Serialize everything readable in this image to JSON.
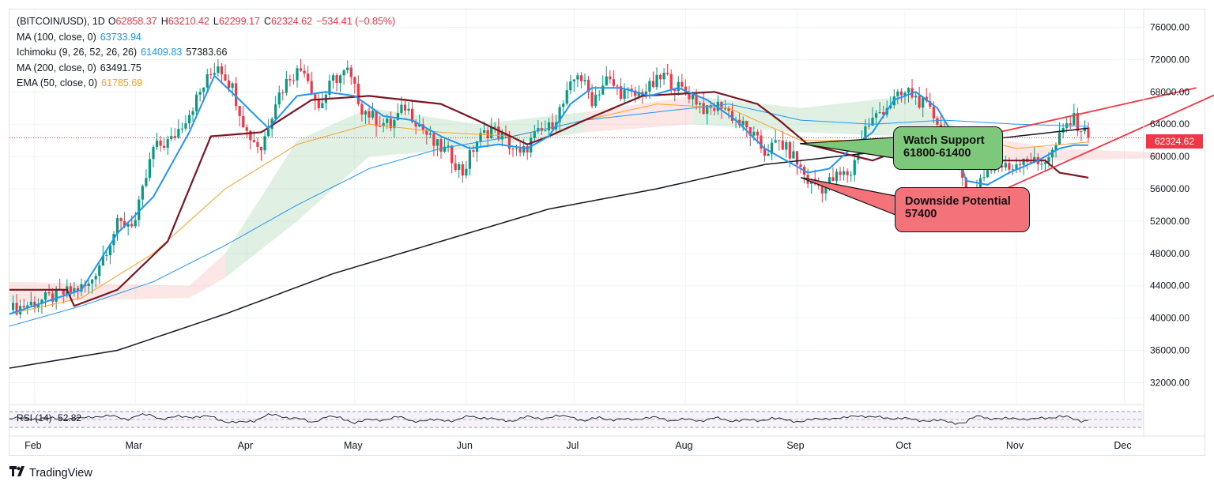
{
  "legend": {
    "symbol": "(BITCOIN/USD), 1D",
    "open_label": "O",
    "open": "62858.37",
    "high_label": "H",
    "high": "63210.42",
    "low_label": "L",
    "low": "62299.17",
    "close_label": "C",
    "close": "62324.62",
    "change": "−534.41 (−0.85%)",
    "ma100_label": "MA (100, close, 0)",
    "ma100_value": "63733.94",
    "ichimoku_label": "Ichimoku (9, 26, 52, 26, 26)",
    "ichimoku_value1": "61409.83",
    "ichimoku_value2": "57383.66",
    "ma200_label": "MA (200, close, 0)",
    "ma200_value": "63491.75",
    "ema50_label": "EMA (50, close, 0)",
    "ema50_value": "61785.69"
  },
  "price_tag": "62324.62",
  "callouts": {
    "support_line1": "Watch Support",
    "support_line2": "61800-61400",
    "downside_line1": "Downside Potential",
    "downside_line2": "57400"
  },
  "rsi": {
    "label": "RSI (14)",
    "value": "52.82"
  },
  "footer": {
    "brand": "TradingView",
    "logo_icon": "tradingview-logo-icon"
  },
  "colors": {
    "up": "#089981",
    "down": "#f23645",
    "ma100": "#2196f3",
    "ema50": "#f7a22a",
    "ma200": "#131722",
    "kijun": "#7b1622",
    "tenkan": "#2196f3",
    "cloud_bull": "#8fce9a",
    "cloud_bear": "#f6a7a7",
    "wedge": "#f23645"
  },
  "chart_data": {
    "type": "candlestick",
    "title": "(BITCOIN/USD), 1D",
    "x_axis_labels": [
      "Feb",
      "Mar",
      "Apr",
      "May",
      "Jun",
      "Jul",
      "Aug",
      "Sep",
      "Oct",
      "Nov",
      "Dec"
    ],
    "y_axis_labels": [
      "76000.00",
      "72000.00",
      "68000.00",
      "64000.00",
      "60000.00",
      "56000.00",
      "52000.00",
      "48000.00",
      "44000.00",
      "40000.00",
      "36000.00",
      "32000.00"
    ],
    "ylim": [
      29500,
      78200
    ],
    "days_from_jan25_range": [
      0,
      318
    ],
    "current_price": 62324.62,
    "close_anchors": [
      [
        0,
        41000
      ],
      [
        12,
        42600
      ],
      [
        22,
        44000
      ],
      [
        30,
        51500
      ],
      [
        35,
        52000
      ],
      [
        40,
        61000
      ],
      [
        45,
        62000
      ],
      [
        50,
        65500
      ],
      [
        55,
        69500
      ],
      [
        58,
        71500
      ],
      [
        62,
        68500
      ],
      [
        66,
        63000
      ],
      [
        70,
        61000
      ],
      [
        74,
        67000
      ],
      [
        78,
        70000
      ],
      [
        82,
        71000
      ],
      [
        86,
        66000
      ],
      [
        90,
        69500
      ],
      [
        94,
        70500
      ],
      [
        98,
        66000
      ],
      [
        102,
        64500
      ],
      [
        106,
        63800
      ],
      [
        110,
        66200
      ],
      [
        114,
        64000
      ],
      [
        118,
        61500
      ],
      [
        122,
        60500
      ],
      [
        126,
        58000
      ],
      [
        130,
        62000
      ],
      [
        134,
        63500
      ],
      [
        138,
        62000
      ],
      [
        142,
        60000
      ],
      [
        146,
        62500
      ],
      [
        150,
        63500
      ],
      [
        154,
        66500
      ],
      [
        158,
        70500
      ],
      [
        162,
        67000
      ],
      [
        166,
        69500
      ],
      [
        170,
        68000
      ],
      [
        174,
        67500
      ],
      [
        178,
        68500
      ],
      [
        182,
        70000
      ],
      [
        186,
        68500
      ],
      [
        190,
        67500
      ],
      [
        194,
        65500
      ],
      [
        198,
        66500
      ],
      [
        202,
        64500
      ],
      [
        206,
        63000
      ],
      [
        210,
        60500
      ],
      [
        214,
        61800
      ],
      [
        218,
        60000
      ],
      [
        222,
        57000
      ],
      [
        226,
        56200
      ],
      [
        230,
        57500
      ],
      [
        234,
        58000
      ],
      [
        238,
        63500
      ],
      [
        242,
        65500
      ],
      [
        246,
        67000
      ],
      [
        250,
        68000
      ],
      [
        254,
        66500
      ],
      [
        258,
        64500
      ],
      [
        262,
        61500
      ],
      [
        266,
        56000
      ],
      [
        268,
        54000
      ],
      [
        270,
        57500
      ],
      [
        274,
        59000
      ],
      [
        278,
        58500
      ],
      [
        282,
        60000
      ],
      [
        286,
        59000
      ],
      [
        290,
        60500
      ],
      [
        294,
        64000
      ],
      [
        296,
        64500
      ],
      [
        298,
        63500
      ],
      [
        300,
        62324
      ]
    ],
    "sma200": [
      [
        0,
        33800
      ],
      [
        30,
        36000
      ],
      [
        60,
        40500
      ],
      [
        90,
        45500
      ],
      [
        120,
        49500
      ],
      [
        150,
        53500
      ],
      [
        180,
        56000
      ],
      [
        210,
        59000
      ],
      [
        240,
        60500
      ],
      [
        270,
        62000
      ],
      [
        300,
        63500
      ]
    ],
    "sma100": [
      [
        0,
        39000
      ],
      [
        20,
        41500
      ],
      [
        40,
        44500
      ],
      [
        60,
        49000
      ],
      [
        80,
        54000
      ],
      [
        100,
        58500
      ],
      [
        120,
        61000
      ],
      [
        140,
        62500
      ],
      [
        160,
        64500
      ],
      [
        180,
        65500
      ],
      [
        200,
        66500
      ],
      [
        220,
        64500
      ],
      [
        240,
        64000
      ],
      [
        260,
        64500
      ],
      [
        280,
        64000
      ],
      [
        300,
        63734
      ]
    ],
    "ema50": [
      [
        0,
        40500
      ],
      [
        20,
        42500
      ],
      [
        40,
        48000
      ],
      [
        60,
        56000
      ],
      [
        80,
        61500
      ],
      [
        100,
        64000
      ],
      [
        120,
        63000
      ],
      [
        140,
        62500
      ],
      [
        160,
        64500
      ],
      [
        180,
        66500
      ],
      [
        200,
        66000
      ],
      [
        220,
        62000
      ],
      [
        240,
        62000
      ],
      [
        260,
        63000
      ],
      [
        280,
        61000
      ],
      [
        300,
        61786
      ]
    ],
    "tenkan": [
      [
        0,
        40500
      ],
      [
        10,
        42000
      ],
      [
        20,
        43500
      ],
      [
        30,
        50500
      ],
      [
        40,
        55000
      ],
      [
        50,
        63000
      ],
      [
        57,
        70000
      ],
      [
        64,
        67000
      ],
      [
        72,
        63500
      ],
      [
        80,
        67500
      ],
      [
        88,
        68000
      ],
      [
        96,
        67500
      ],
      [
        104,
        65000
      ],
      [
        112,
        64500
      ],
      [
        120,
        62500
      ],
      [
        128,
        61000
      ],
      [
        136,
        61500
      ],
      [
        144,
        61000
      ],
      [
        150,
        62500
      ],
      [
        156,
        66500
      ],
      [
        162,
        68500
      ],
      [
        170,
        68500
      ],
      [
        178,
        67500
      ],
      [
        186,
        68500
      ],
      [
        194,
        67000
      ],
      [
        202,
        64500
      ],
      [
        210,
        61000
      ],
      [
        216,
        59500
      ],
      [
        222,
        58000
      ],
      [
        228,
        58500
      ],
      [
        234,
        61000
      ],
      [
        240,
        63000
      ],
      [
        246,
        67000
      ],
      [
        252,
        68000
      ],
      [
        258,
        66000
      ],
      [
        262,
        63000
      ],
      [
        266,
        57000
      ],
      [
        272,
        56500
      ],
      [
        278,
        58000
      ],
      [
        286,
        59500
      ],
      [
        292,
        61000
      ],
      [
        296,
        61400
      ],
      [
        300,
        61410
      ]
    ],
    "kijun": [
      [
        0,
        43500
      ],
      [
        16,
        43500
      ],
      [
        18,
        41500
      ],
      [
        30,
        43500
      ],
      [
        44,
        49500
      ],
      [
        56,
        62500
      ],
      [
        70,
        63000
      ],
      [
        84,
        67000
      ],
      [
        100,
        67500
      ],
      [
        120,
        66500
      ],
      [
        130,
        64500
      ],
      [
        144,
        61500
      ],
      [
        150,
        62500
      ],
      [
        160,
        64500
      ],
      [
        176,
        67500
      ],
      [
        196,
        68000
      ],
      [
        208,
        66500
      ],
      [
        214,
        64500
      ],
      [
        222,
        61500
      ],
      [
        240,
        59500
      ],
      [
        252,
        61500
      ],
      [
        264,
        62000
      ],
      [
        268,
        59500
      ],
      [
        288,
        59500
      ],
      [
        292,
        58000
      ],
      [
        300,
        57384
      ]
    ],
    "cloud": [
      [
        0,
        42000,
        44500,
        "bear"
      ],
      [
        50,
        42500,
        44000,
        "bear"
      ],
      [
        60,
        45000,
        48000,
        "bull"
      ],
      [
        80,
        52000,
        62000,
        "bull"
      ],
      [
        100,
        60000,
        66000,
        "bull"
      ],
      [
        130,
        61000,
        64000,
        "bull"
      ],
      [
        160,
        63000,
        65500,
        "bear"
      ],
      [
        190,
        64000,
        67500,
        "bull"
      ],
      [
        220,
        63000,
        66000,
        "bull"
      ],
      [
        250,
        62500,
        67500,
        "bull"
      ],
      [
        265,
        60000,
        63000,
        "bear"
      ],
      [
        290,
        59500,
        61000,
        "bear"
      ],
      [
        320,
        59800,
        60500,
        "bear"
      ]
    ],
    "wedge_upper": [
      [
        270,
        62500
      ],
      [
        330,
        68500
      ]
    ],
    "wedge_lower": [
      [
        268,
        54200
      ],
      [
        336,
        67800
      ]
    ],
    "annotation_support_level": [
      61800,
      61400
    ],
    "annotation_downside_level": 57400,
    "rsi": {
      "period": 14,
      "value": 52.82,
      "upper_band": 70,
      "lower_band": 30
    }
  }
}
